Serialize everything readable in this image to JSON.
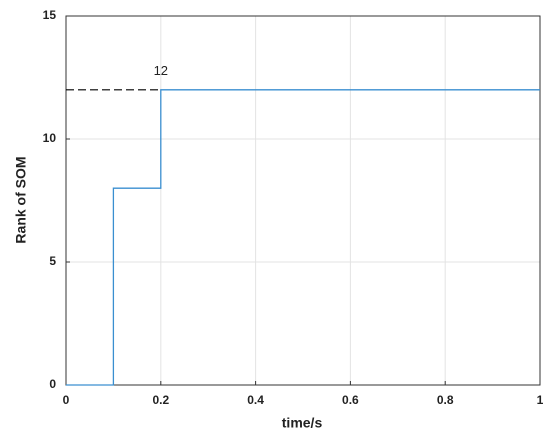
{
  "chart_data": {
    "type": "line",
    "x_label": "time/s",
    "y_label": "Rank of SOM",
    "series": [
      {
        "name": "Rank of SOM",
        "color": "#3a8fd0",
        "x": [
          0,
          0.1,
          0.1,
          0.2,
          0.2,
          1
        ],
        "values": [
          0,
          0,
          8,
          8,
          12,
          12
        ]
      }
    ],
    "reference_line": {
      "y": 12,
      "x": [
        0,
        0.2
      ],
      "color": "#000000",
      "dashed": true
    },
    "annotations": [
      {
        "text": "12",
        "x": 0.2,
        "y": 12
      }
    ],
    "xlim": [
      0,
      1
    ],
    "xticks": [
      0,
      0.2,
      0.4,
      0.6,
      0.8,
      1
    ],
    "ylim": [
      0,
      15
    ],
    "yticks": [
      0,
      5,
      10,
      15
    ],
    "grid": true
  }
}
